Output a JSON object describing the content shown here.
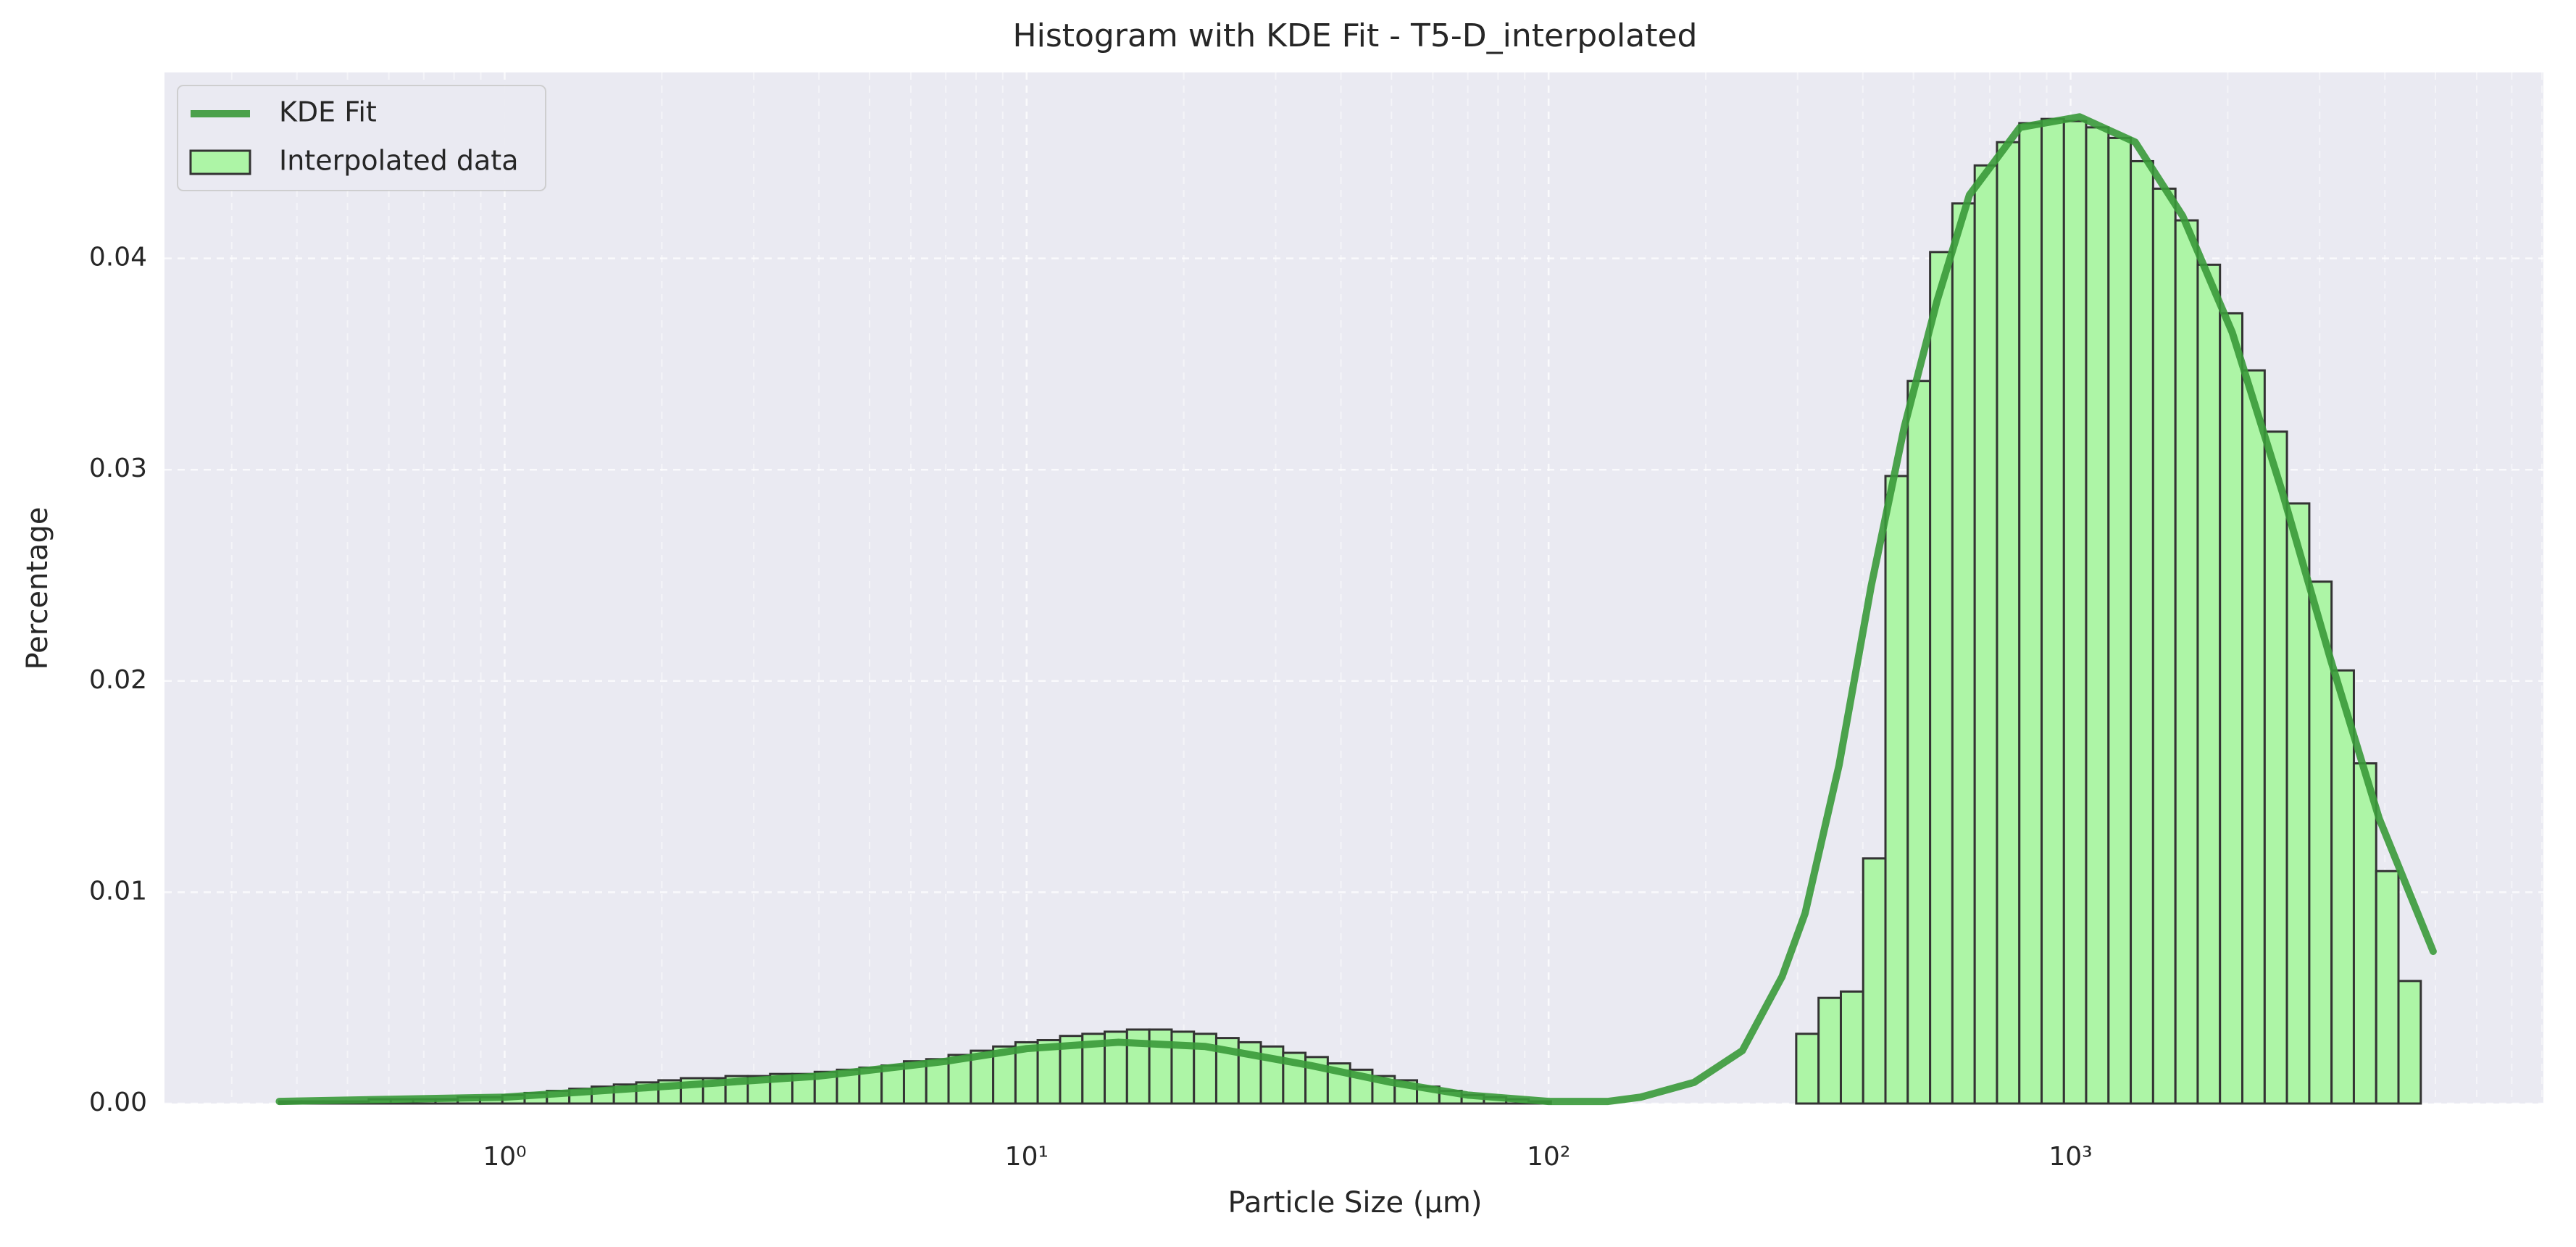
{
  "chart_data": {
    "type": "histogram",
    "title": "Histogram with KDE Fit - T5-D_interpolated",
    "xlabel": "Particle Size (μm)",
    "ylabel": "Percentage",
    "xscale": "log",
    "grid": true,
    "legend": "upper left",
    "xlim": [
      0.223,
      8050
    ],
    "ylim": [
      0,
      0.0488
    ],
    "xticks": [
      {
        "value": 1,
        "label": "10⁰"
      },
      {
        "value": 10,
        "label": "10¹"
      },
      {
        "value": 100,
        "label": "10²"
      },
      {
        "value": 1000,
        "label": "10³"
      }
    ],
    "yticks": [
      {
        "value": 0,
        "label": "0.00"
      },
      {
        "value": 0.01,
        "label": "0.01"
      },
      {
        "value": 0.02,
        "label": "0.02"
      },
      {
        "value": 0.03,
        "label": "0.03"
      },
      {
        "value": 0.04,
        "label": "0.04"
      }
    ],
    "name": "Interpolated data",
    "color": "#adf5a6",
    "edgecolor": "#333333",
    "bins": [
      0.37,
      0.408,
      0.45,
      0.497,
      0.549,
      0.605,
      0.668,
      0.737,
      0.813,
      0.897,
      0.99,
      1.092,
      1.205,
      1.33,
      1.468,
      1.619,
      1.787,
      1.971,
      2.175,
      2.4,
      2.649,
      2.923,
      3.225,
      3.558,
      3.926,
      4.332,
      4.78,
      5.275,
      5.82,
      6.422,
      7.086,
      7.819,
      8.628,
      9.52,
      10.5,
      11.59,
      12.79,
      14.11,
      15.57,
      17.18,
      18.96,
      20.92,
      23.08,
      25.47,
      28.1,
      31.01,
      34.21,
      37.75,
      41.66,
      45.96,
      50.72,
      55.96,
      61.75,
      68.13,
      75.18,
      82.95,
      91.53,
      101.0,
      111.4,
      123.0,
      135.7,
      149.7,
      165.2,
      182.3,
      201.1,
      221.9,
      244.9,
      270.2,
      298.1,
      329.0,
      363.0,
      400.5,
      441.9,
      487.6,
      538.1,
      593.7,
      655.1,
      722.8,
      797.6,
      880.0,
      971.0,
      1071,
      1182,
      1304,
      1439,
      1588,
      1752,
      1933,
      2133,
      2354,
      2597,
      2866,
      3162,
      3489,
      3850,
      4248,
      4687
    ],
    "values": [
      0.0001,
      0.0001,
      0.0001,
      0.0001,
      0.0002,
      0.0002,
      0.0002,
      0.0002,
      0.0003,
      0.0003,
      0.0004,
      0.0005,
      0.0006,
      0.0007,
      0.0008,
      0.0009,
      0.001,
      0.0011,
      0.0012,
      0.0012,
      0.0013,
      0.0013,
      0.0014,
      0.0014,
      0.0015,
      0.0016,
      0.0017,
      0.0018,
      0.002,
      0.0021,
      0.0023,
      0.0025,
      0.0027,
      0.0029,
      0.003,
      0.0032,
      0.0033,
      0.0034,
      0.0035,
      0.0035,
      0.0034,
      0.0033,
      0.0031,
      0.0029,
      0.0027,
      0.0024,
      0.0022,
      0.0019,
      0.0016,
      0.0013,
      0.0011,
      0.0008,
      0.0006,
      0.0004,
      0.0003,
      0.0002,
      0.0001,
      0,
      0,
      0,
      0,
      0,
      0,
      0,
      0,
      0,
      0,
      0,
      0.0033,
      0.005,
      0.0053,
      0.0116,
      0.0297,
      0.0342,
      0.0403,
      0.0426,
      0.0444,
      0.0455,
      0.0464,
      0.0466,
      0.0465,
      0.0462,
      0.0457,
      0.0446,
      0.0433,
      0.0418,
      0.0397,
      0.0374,
      0.0347,
      0.0318,
      0.0284,
      0.0247,
      0.0205,
      0.0161,
      0.011,
      0.0058
    ],
    "kde": {
      "name": "KDE Fit",
      "color": "#3a9a3a",
      "x": [
        0.37,
        1,
        2,
        4,
        7,
        10,
        15,
        22,
        35,
        50,
        70,
        100,
        130,
        150,
        190,
        235,
        280,
        310,
        360,
        415,
        480,
        555,
        640,
        800,
        1040,
        1330,
        1640,
        2040,
        2540,
        3150,
        3900,
        4950
      ],
      "values": [
        0.0001,
        0.0003,
        0.0008,
        0.0013,
        0.002,
        0.0026,
        0.0029,
        0.0027,
        0.0018,
        0.001,
        0.0004,
        0.0001,
        0.0001,
        0.0003,
        0.001,
        0.0025,
        0.006,
        0.009,
        0.016,
        0.0245,
        0.032,
        0.038,
        0.043,
        0.0462,
        0.0467,
        0.0455,
        0.042,
        0.0365,
        0.029,
        0.021,
        0.0135,
        0.0072
      ]
    }
  }
}
